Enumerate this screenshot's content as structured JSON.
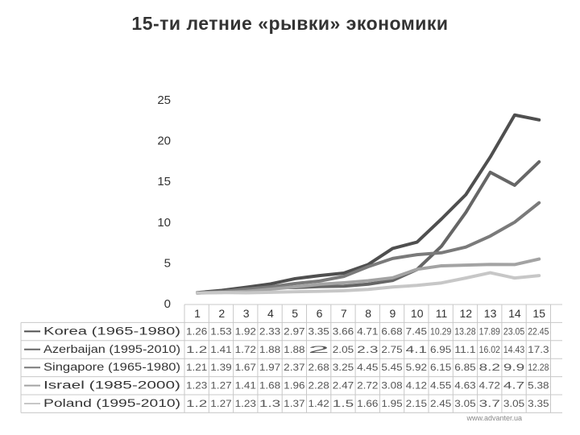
{
  "slide": {
    "title": "15-ти летние «рывки» экономики",
    "footer": "www.advanter.ua"
  },
  "chart_data": {
    "type": "line",
    "title": "",
    "xlabel": "",
    "ylabel": "",
    "ylim": [
      0,
      25
    ],
    "y_ticks": [
      0,
      5,
      10,
      15,
      20,
      25
    ],
    "categories": [
      "1",
      "2",
      "3",
      "4",
      "5",
      "6",
      "7",
      "8",
      "9",
      "10",
      "11",
      "12",
      "13",
      "14",
      "15"
    ],
    "grid": false,
    "legend": "data-table",
    "series": [
      {
        "name": "Korea (1965-1980)",
        "color": "#4f4f4f",
        "values": [
          1.26,
          1.53,
          1.92,
          2.33,
          2.97,
          3.35,
          3.66,
          4.71,
          6.68,
          7.45,
          10.29,
          13.28,
          17.89,
          23.05,
          22.45
        ]
      },
      {
        "name": "Azerbaijan (1995-2010)",
        "color": "#666666",
        "values": [
          1.2,
          1.41,
          1.72,
          1.88,
          1.88,
          2.0,
          2.05,
          2.3,
          2.75,
          4.1,
          6.95,
          11.1,
          16.02,
          14.43,
          17.3
        ]
      },
      {
        "name": "Singapore (1965-1980)",
        "color": "#7a7a7a",
        "values": [
          1.21,
          1.39,
          1.67,
          1.97,
          2.37,
          2.68,
          3.25,
          4.45,
          5.45,
          5.92,
          6.15,
          6.85,
          8.2,
          9.9,
          12.28
        ]
      },
      {
        "name": "Israel (1985-2000)",
        "color": "#a3a3a3",
        "values": [
          1.23,
          1.27,
          1.41,
          1.68,
          1.96,
          2.28,
          2.47,
          2.72,
          3.08,
          4.12,
          4.55,
          4.63,
          4.72,
          4.7,
          5.38
        ]
      },
      {
        "name": "Poland (1995-2010)",
        "color": "#c7c7c7",
        "values": [
          1.2,
          1.27,
          1.23,
          1.3,
          1.37,
          1.42,
          1.5,
          1.66,
          1.95,
          2.15,
          2.45,
          3.05,
          3.7,
          3.05,
          3.35
        ]
      }
    ]
  }
}
